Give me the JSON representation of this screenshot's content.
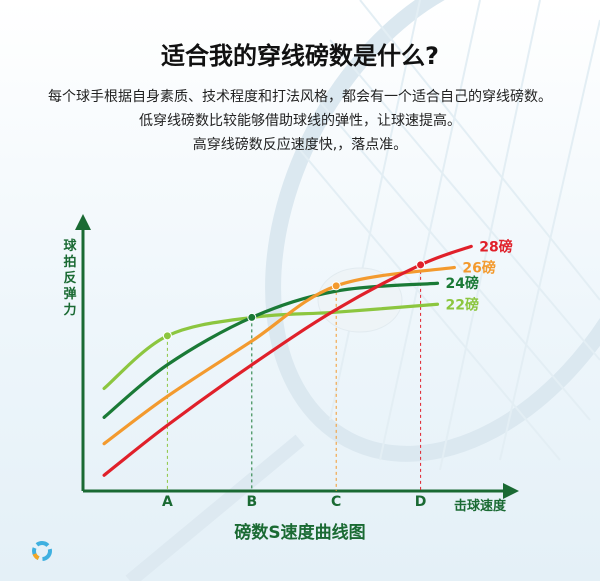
{
  "header": {
    "title": "适合我的穿线磅数是什么?",
    "line1": "每个球手根据自身素质、技术程度和打法风格，都会有一个适合自己的穿线磅数。",
    "line2": "低穿线磅数比较能够借助球线的弹性，让球速提高。",
    "line3": "高穿线磅数反应速度快,，落点准。"
  },
  "caption": "磅数S速度曲线图",
  "colors": {
    "axis": "#1a6a33",
    "s22": "#8cc63f",
    "s24": "#1a7a36",
    "s26": "#f39a2e",
    "s28": "#e0202a"
  },
  "chart_data": {
    "type": "line",
    "ylabel": "球拍反弹力",
    "xlabel": "击球速度",
    "categories": [
      "A",
      "B",
      "C",
      "D"
    ],
    "xlim": [
      0,
      5
    ],
    "ylim": [
      0,
      10
    ],
    "marker_x": [
      1,
      2,
      3,
      4
    ],
    "series": [
      {
        "name": "22磅",
        "color": "#8cc63f",
        "x": [
          0.25,
          1,
          2,
          3,
          4.2
        ],
        "y": [
          3.9,
          5.9,
          6.6,
          6.8,
          7.1
        ],
        "marker": [
          1,
          5.9
        ]
      },
      {
        "name": "24磅",
        "color": "#1a7a36",
        "x": [
          0.25,
          1,
          2,
          3,
          4.2
        ],
        "y": [
          2.8,
          4.8,
          6.6,
          7.6,
          7.9
        ],
        "marker": [
          2,
          6.6
        ]
      },
      {
        "name": "26磅",
        "color": "#f39a2e",
        "x": [
          0.25,
          1,
          2,
          3,
          4.4
        ],
        "y": [
          1.8,
          3.6,
          5.7,
          7.8,
          8.5
        ],
        "marker": [
          3,
          7.8
        ]
      },
      {
        "name": "28磅",
        "color": "#e0202a",
        "x": [
          0.25,
          1,
          2,
          3,
          4,
          4.6
        ],
        "y": [
          0.6,
          2.5,
          4.8,
          6.9,
          8.6,
          9.3
        ],
        "marker": [
          4,
          8.6
        ]
      }
    ]
  }
}
